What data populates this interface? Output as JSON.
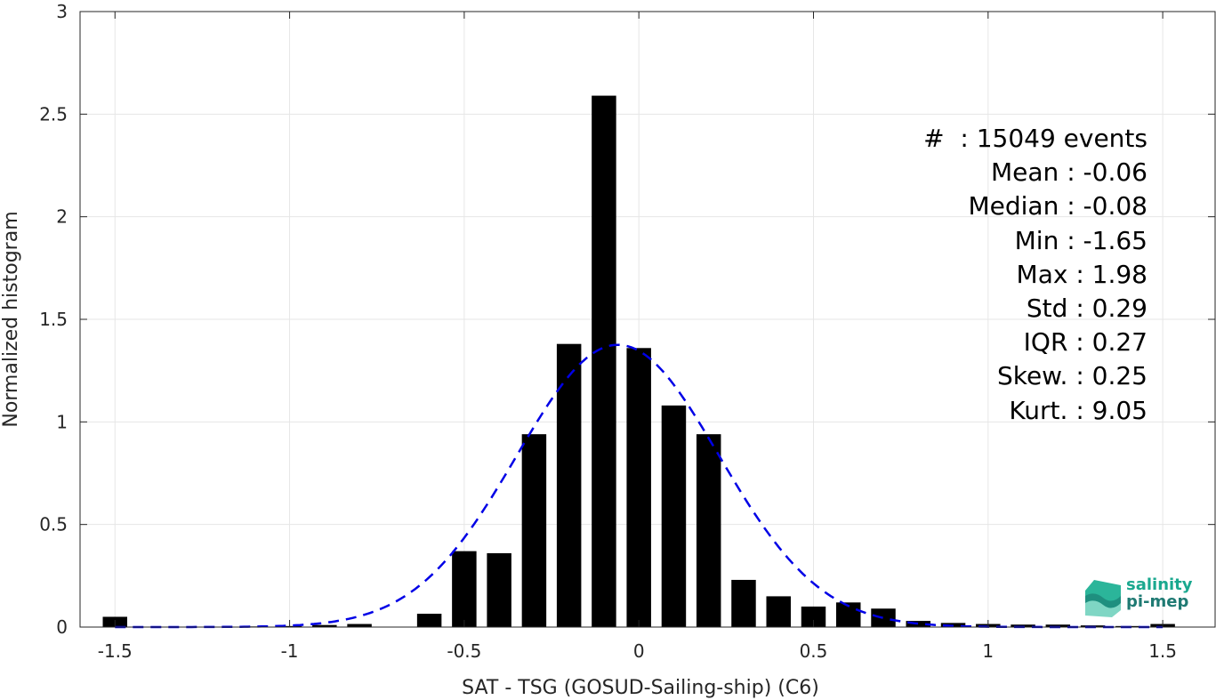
{
  "chart_data": {
    "type": "bar",
    "xlabel": "SAT - TSG (GOSUD-Sailing-ship) (C6)",
    "ylabel": "Normalized histogram",
    "xlim": [
      -1.6,
      1.65
    ],
    "ylim": [
      0,
      3
    ],
    "grid": true,
    "xticks": [
      -1.5,
      -1,
      -0.5,
      0,
      0.5,
      1,
      1.5
    ],
    "xtick_labels": [
      "-1.5",
      "-1",
      "-0.5",
      "0",
      "0.5",
      "1",
      "1.5"
    ],
    "yticks": [
      0,
      0.5,
      1,
      1.5,
      2,
      2.5,
      3
    ],
    "ytick_labels": [
      "0",
      "0.5",
      "1",
      "1.5",
      "2",
      "2.5",
      "3"
    ],
    "bar_width": 0.07,
    "bars": {
      "x": [
        -1.5,
        -1.4,
        -1.3,
        -1.2,
        -1.1,
        -1.0,
        -0.9,
        -0.8,
        -0.7,
        -0.6,
        -0.5,
        -0.4,
        -0.3,
        -0.2,
        -0.1,
        0.0,
        0.1,
        0.2,
        0.3,
        0.4,
        0.5,
        0.6,
        0.7,
        0.8,
        0.9,
        1.0,
        1.1,
        1.2,
        1.3,
        1.4,
        1.5
      ],
      "values": [
        0.05,
        0.002,
        0.002,
        0.002,
        0.003,
        0.005,
        0.01,
        0.015,
        0.002,
        0.065,
        0.37,
        0.36,
        0.94,
        1.38,
        2.59,
        1.36,
        1.08,
        0.94,
        0.23,
        0.15,
        0.1,
        0.12,
        0.09,
        0.03,
        0.02,
        0.015,
        0.012,
        0.012,
        0.008,
        0.005,
        0.015
      ]
    },
    "fit": {
      "style": "dashed",
      "color": "#0000e6",
      "mean": -0.06,
      "std": 0.29,
      "x_range": [
        -1.5,
        1.5
      ]
    },
    "bar_color": "#000000"
  },
  "stats": [
    "#  : 15049 events",
    "Mean : -0.06",
    "Median : -0.08",
    "Min : -1.65",
    "Max : 1.98",
    "Std : 0.29",
    "IQR : 0.27",
    "Skew. : 0.25",
    "Kurt. : 9.05"
  ],
  "logo": {
    "line1": "salinity",
    "line2": "pi-mep"
  }
}
